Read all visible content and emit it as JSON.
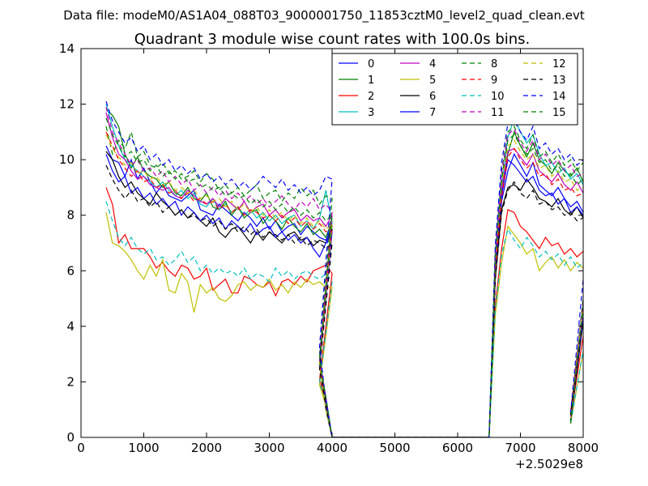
{
  "header": {
    "suptitle": "Data file: modeM0/AS1A04_088T03_9000001750_11853cztM0_level2_quad_clean.evt"
  },
  "chart_data": {
    "type": "line",
    "title": "Quadrant 3 module wise count rates with 100.0s bins.",
    "xlabel": "",
    "ylabel": "",
    "x_offset_label": "+2.5029e8",
    "xlim": [
      0,
      8000
    ],
    "ylim": [
      0,
      14
    ],
    "xticks": [
      0,
      1000,
      2000,
      3000,
      4000,
      5000,
      6000,
      7000,
      8000
    ],
    "yticks": [
      0,
      2,
      4,
      6,
      8,
      10,
      12,
      14
    ],
    "grid": false,
    "legend": {
      "placement": "top-right",
      "columns": 4
    },
    "series": [
      {
        "name": "0",
        "color": "#0000ff",
        "dash": "solid",
        "seg1": [
          10.5,
          10.0,
          9.9,
          9.4,
          10.0,
          9.3,
          9.7,
          9.2,
          8.8,
          9.1,
          8.7,
          8.6,
          8.5,
          8.7,
          8.9,
          8.2,
          8.1,
          8.0,
          8.4,
          8.2,
          8.0,
          7.8,
          8.1,
          7.9,
          7.6,
          7.9,
          7.5,
          7.8,
          7.4,
          7.6,
          7.7,
          7.3,
          7.6,
          7.4,
          7.2,
          7.1,
          7.6
        ],
        "seg2": [
          8.5,
          9.6,
          10.2,
          9.8,
          9.4,
          9.9,
          9.1,
          8.9,
          8.7,
          9.0,
          8.6,
          8.3,
          8.5,
          8.1,
          8.4,
          8.2
        ]
      },
      {
        "name": "1",
        "color": "#008000",
        "dash": "solid",
        "seg1": [
          11.8,
          11.6,
          11.2,
          10.2,
          9.7,
          10.1,
          9.6,
          9.4,
          9.3,
          9.0,
          9.2,
          8.8,
          8.7,
          9.0,
          8.6,
          8.5,
          8.8,
          8.3,
          8.2,
          8.5,
          8.0,
          8.3,
          7.9,
          8.1,
          8.2,
          7.7,
          8.0,
          7.8,
          7.5,
          7.9,
          7.6,
          7.4,
          7.7,
          7.3,
          7.5,
          7.2,
          7.8
        ],
        "seg2": [
          8.8,
          10.2,
          11.0,
          10.5,
          10.1,
          10.6,
          10.0,
          9.8,
          9.5,
          9.9,
          9.6,
          9.4,
          9.7,
          9.2,
          9.5,
          9.0
        ]
      },
      {
        "name": "2",
        "color": "#ff0000",
        "dash": "solid",
        "seg1": [
          9.0,
          8.4,
          7.0,
          7.3,
          6.8,
          6.8,
          6.8,
          6.5,
          6.1,
          6.3,
          6.0,
          5.8,
          6.2,
          6.1,
          5.7,
          5.8,
          6.1,
          5.3,
          5.5,
          5.7,
          5.2,
          5.2,
          5.8,
          5.7,
          5.5,
          5.4,
          5.6,
          5.1,
          5.6,
          5.7,
          5.5,
          5.8,
          5.6,
          6.0,
          6.1,
          6.2,
          5.9
        ],
        "seg2": [
          6.8,
          8.2,
          8.1,
          7.6,
          7.4,
          7.1,
          6.8,
          7.2,
          6.9,
          7.0,
          6.6,
          6.8,
          6.5,
          6.7,
          6.4,
          6.6
        ]
      },
      {
        "name": "3",
        "color": "#00bfbf",
        "dash": "solid",
        "seg1": [
          12.0,
          11.2,
          10.5,
          10.0,
          9.8,
          9.6,
          9.4,
          9.2,
          9.0,
          9.2,
          8.9,
          8.7,
          8.9,
          8.6,
          8.8,
          8.4,
          8.3,
          8.6,
          8.2,
          8.4,
          8.1,
          8.3,
          8.0,
          8.2,
          7.9,
          8.1,
          7.8,
          8.0,
          7.7,
          7.9,
          8.0,
          7.6,
          7.8,
          7.5,
          7.9,
          8.9,
          7.7
        ],
        "seg2": [
          9.0,
          10.8,
          11.5,
          11.0,
          10.6,
          10.9,
          10.2,
          9.8,
          9.9,
          9.5,
          9.7,
          9.3,
          9.5,
          9.1,
          9.4,
          8.9
        ]
      },
      {
        "name": "4",
        "color": "#bf00bf",
        "dash": "solid",
        "seg1": [
          11.7,
          10.8,
          10.2,
          10.0,
          9.6,
          9.3,
          9.4,
          9.1,
          9.0,
          8.9,
          9.0,
          8.7,
          8.6,
          8.9,
          8.7,
          8.5,
          8.4,
          8.6,
          8.3,
          8.6,
          8.4,
          8.2,
          8.5,
          8.1,
          8.3,
          8.4,
          8.0,
          8.2,
          7.9,
          8.1,
          8.2,
          7.8,
          8.0,
          7.8,
          7.9,
          7.6,
          8.0
        ],
        "seg2": [
          8.9,
          10.3,
          10.4,
          10.1,
          9.8,
          10.2,
          9.6,
          9.4,
          9.2,
          9.5,
          9.1,
          8.9,
          9.2,
          8.8,
          9.0,
          8.7
        ]
      },
      {
        "name": "5",
        "color": "#bfbf00",
        "dash": "solid",
        "seg1": [
          8.1,
          7.0,
          6.9,
          6.7,
          6.4,
          6.0,
          5.7,
          6.2,
          5.8,
          6.4,
          5.3,
          5.2,
          5.9,
          5.6,
          4.5,
          5.5,
          5.2,
          5.4,
          5.0,
          4.9,
          5.1,
          5.5,
          5.6,
          5.3,
          5.5,
          5.4,
          5.7,
          5.3,
          5.5,
          5.2,
          5.6,
          5.4,
          5.7,
          5.5,
          5.6,
          5.4,
          5.4
        ],
        "seg2": [
          6.3,
          7.6,
          7.3,
          7.0,
          6.6,
          6.8,
          6.0,
          6.3,
          6.5,
          6.1,
          6.4,
          6.0,
          6.3,
          6.1,
          5.9,
          5.7
        ]
      },
      {
        "name": "6",
        "color": "#000000",
        "dash": "solid",
        "seg1": [
          10.3,
          10.0,
          9.4,
          9.0,
          9.2,
          8.8,
          8.6,
          8.4,
          8.8,
          8.5,
          8.3,
          8.0,
          8.2,
          7.9,
          8.1,
          7.8,
          7.6,
          7.9,
          7.4,
          7.2,
          7.5,
          7.6,
          7.3,
          7.0,
          7.4,
          7.1,
          7.4,
          7.2,
          7.0,
          7.3,
          7.4,
          7.1,
          7.2,
          6.9,
          7.1,
          7.0,
          7.5
        ],
        "seg2": [
          8.2,
          9.0,
          9.1,
          8.9,
          9.3,
          9.0,
          8.6,
          8.5,
          8.3,
          8.6,
          8.2,
          8.0,
          8.3,
          7.9,
          8.1,
          7.8
        ]
      },
      {
        "name": "7",
        "color": "#0000ff",
        "dash": "solid",
        "seg1": [
          10.2,
          9.6,
          9.2,
          9.4,
          8.8,
          9.0,
          8.6,
          8.8,
          8.4,
          8.6,
          8.3,
          8.5,
          8.0,
          8.3,
          8.1,
          7.8,
          8.0,
          7.7,
          7.9,
          7.5,
          7.8,
          7.6,
          7.4,
          7.7,
          7.3,
          7.5,
          7.6,
          7.2,
          7.4,
          7.1,
          7.3,
          7.0,
          7.2,
          6.8,
          6.5,
          7.0,
          7.4
        ],
        "seg2": [
          8.7,
          10.0,
          9.8,
          9.5,
          9.2,
          9.4,
          8.9,
          8.7,
          8.8,
          8.4,
          8.6,
          8.1,
          8.3,
          8.0,
          7.8,
          7.9
        ]
      },
      {
        "name": "8",
        "color": "#008000",
        "dash": "dashed",
        "seg1": [
          11.2,
          10.2,
          10.7,
          10.4,
          11.0,
          10.1,
          10.3,
          9.8,
          9.7,
          9.9,
          9.5,
          9.6,
          9.3,
          9.4,
          9.6,
          9.2,
          9.5,
          9.3,
          8.9,
          9.1,
          8.8,
          9.0,
          8.7,
          8.9,
          9.1,
          8.6,
          8.8,
          8.9,
          8.5,
          8.8,
          8.6,
          9.0,
          8.7,
          8.9,
          8.4,
          8.7,
          8.6
        ],
        "seg2": [
          9.6,
          11.0,
          11.2,
          10.7,
          10.4,
          10.9,
          10.1,
          10.3,
          9.9,
          10.2,
          9.8,
          10.0,
          9.6,
          9.9,
          9.5,
          9.3
        ]
      },
      {
        "name": "9",
        "color": "#ff0000",
        "dash": "dashed",
        "seg1": [
          11.0,
          10.5,
          10.0,
          9.7,
          9.4,
          9.6,
          9.2,
          9.3,
          9.0,
          9.1,
          8.8,
          8.9,
          8.6,
          8.8,
          8.5,
          8.6,
          8.4,
          8.5,
          8.2,
          8.4,
          8.1,
          8.3,
          8.0,
          8.2,
          8.1,
          7.9,
          8.0,
          7.8,
          8.0,
          7.7,
          7.9,
          7.6,
          7.8,
          7.5,
          7.7,
          7.4,
          7.6
        ],
        "seg2": [
          8.6,
          10.1,
          10.4,
          10.0,
          9.7,
          9.9,
          9.4,
          9.5,
          9.1,
          9.3,
          8.9,
          9.0,
          8.7,
          8.8,
          8.5,
          8.6
        ]
      },
      {
        "name": "10",
        "color": "#00bfbf",
        "dash": "dashed",
        "seg1": [
          8.5,
          7.8,
          7.2,
          6.9,
          7.2,
          6.8,
          6.6,
          6.8,
          6.4,
          6.5,
          6.2,
          6.4,
          6.7,
          6.3,
          6.5,
          6.0,
          6.2,
          5.9,
          6.1,
          5.9,
          6.0,
          5.8,
          6.1,
          5.7,
          5.9,
          5.8,
          5.6,
          6.1,
          5.8,
          6.0,
          5.7,
          5.9,
          6.0,
          5.8,
          5.7,
          5.9,
          5.6
        ],
        "seg2": [
          6.6,
          7.5,
          7.1,
          6.8,
          7.2,
          6.9,
          6.5,
          6.7,
          6.4,
          6.6,
          6.2,
          6.5,
          6.1,
          6.3,
          6.0,
          5.8
        ]
      },
      {
        "name": "11",
        "color": "#bf00bf",
        "dash": "dashed",
        "seg1": [
          11.9,
          11.0,
          10.6,
          10.2,
          9.8,
          10.0,
          9.6,
          9.7,
          9.4,
          9.6,
          9.2,
          9.4,
          9.1,
          9.3,
          8.9,
          9.1,
          8.8,
          9.0,
          8.7,
          8.9,
          8.6,
          8.8,
          8.5,
          8.7,
          8.4,
          8.6,
          8.3,
          8.5,
          8.7,
          8.4,
          8.2,
          8.5,
          8.3,
          8.6,
          8.2,
          8.4,
          8.1
        ],
        "seg2": [
          9.5,
          10.9,
          11.1,
          10.6,
          10.3,
          10.7,
          10.0,
          10.2,
          9.8,
          10.0,
          9.6,
          9.8,
          9.4,
          9.5,
          9.1,
          9.2
        ]
      },
      {
        "name": "12",
        "color": "#bfbf00",
        "dash": "dashed",
        "seg1": [
          10.9,
          10.4,
          10.1,
          9.8,
          9.9,
          9.5,
          9.6,
          9.3,
          9.4,
          9.1,
          9.2,
          8.9,
          9.0,
          8.8,
          8.9,
          8.6,
          8.7,
          8.5,
          8.6,
          8.3,
          8.5,
          8.2,
          8.4,
          8.1,
          8.3,
          8.0,
          8.2,
          7.9,
          8.1,
          7.8,
          8.0,
          7.7,
          7.9,
          7.6,
          7.8,
          7.5,
          7.7
        ],
        "seg2": [
          9.1,
          10.5,
          10.7,
          10.3,
          10.0,
          10.2,
          9.7,
          9.8,
          9.4,
          9.6,
          9.2,
          9.3,
          8.9,
          9.0,
          8.7,
          8.8
        ]
      },
      {
        "name": "13",
        "color": "#000000",
        "dash": "dashed",
        "seg1": [
          9.8,
          9.3,
          8.9,
          8.6,
          8.9,
          8.5,
          8.6,
          8.3,
          8.5,
          8.1,
          8.3,
          8.0,
          8.2,
          7.9,
          8.0,
          7.8,
          7.9,
          7.6,
          7.8,
          7.5,
          7.7,
          7.4,
          7.6,
          7.3,
          7.5,
          7.2,
          7.4,
          7.3,
          7.1,
          7.3,
          7.0,
          7.2,
          6.9,
          7.1,
          7.0,
          6.8,
          7.0
        ],
        "seg2": [
          8.1,
          8.9,
          9.2,
          8.8,
          8.6,
          8.9,
          8.4,
          8.5,
          8.2,
          8.3,
          8.0,
          8.1,
          7.8,
          7.9,
          7.6,
          7.7
        ]
      },
      {
        "name": "14",
        "color": "#0000ff",
        "dash": "dashed",
        "seg1": [
          12.1,
          11.4,
          11.0,
          10.6,
          10.8,
          10.3,
          10.5,
          10.0,
          10.2,
          9.8,
          10.0,
          9.6,
          9.8,
          9.5,
          9.7,
          9.3,
          9.5,
          9.2,
          9.4,
          9.1,
          9.3,
          9.0,
          9.2,
          8.9,
          9.1,
          9.4,
          9.2,
          9.0,
          9.3,
          8.9,
          9.1,
          8.8,
          9.0,
          8.7,
          8.9,
          9.4,
          9.3
        ],
        "seg2": [
          9.9,
          11.3,
          11.4,
          11.0,
          10.7,
          11.2,
          10.4,
          10.6,
          10.2,
          10.4,
          10.0,
          10.2,
          9.8,
          10.0,
          9.7,
          10.5
        ]
      },
      {
        "name": "15",
        "color": "#008000",
        "dash": "dashed",
        "seg1": [
          11.5,
          10.9,
          10.5,
          10.1,
          10.3,
          9.9,
          10.0,
          9.6,
          9.8,
          9.4,
          9.6,
          9.3,
          9.5,
          9.2,
          9.3,
          9.0,
          9.1,
          8.9,
          9.0,
          8.7,
          8.8,
          8.6,
          8.7,
          8.4,
          8.6,
          8.3,
          8.5,
          8.2,
          8.4,
          8.1,
          8.3,
          8.0,
          8.2,
          7.9,
          8.1,
          7.8,
          8.0
        ],
        "seg2": [
          9.3,
          10.7,
          10.9,
          10.5,
          10.2,
          10.4,
          9.9,
          10.0,
          9.6,
          9.8,
          9.4,
          9.5,
          9.1,
          9.3,
          8.9,
          9.0
        ]
      }
    ]
  }
}
